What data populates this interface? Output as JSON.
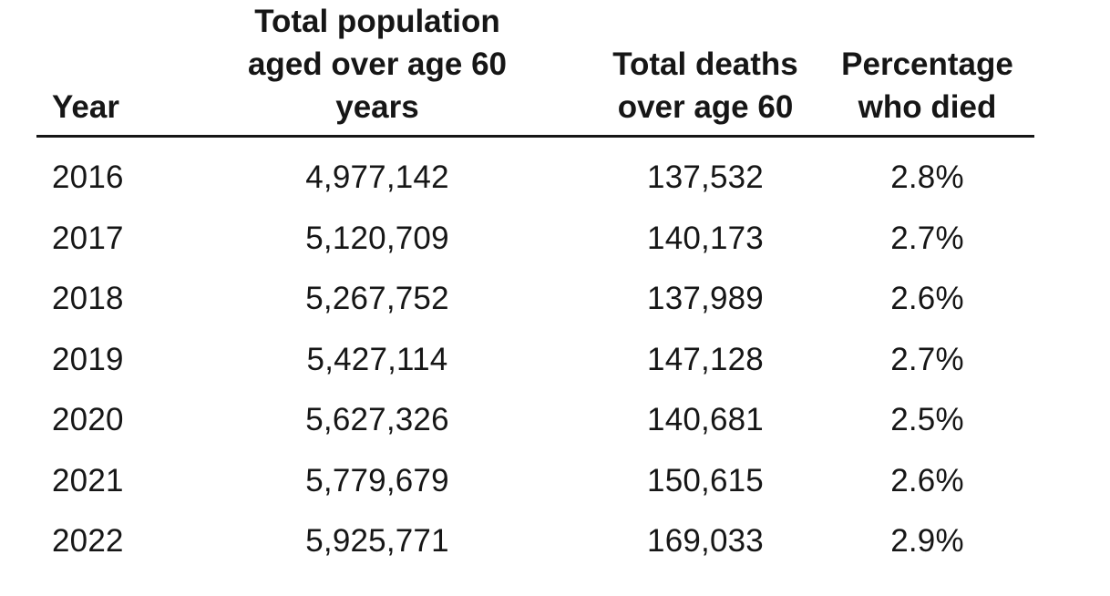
{
  "table": {
    "header_display": {
      "year": "Year",
      "population": "Total population\naged over age 60\nyears",
      "deaths": "Total deaths\nover age 60",
      "percentage": "Percentage\nwho died"
    }
  },
  "chart_data": {
    "type": "table",
    "title": "",
    "columns": [
      "Year",
      "Total population aged over age 60 years",
      "Total deaths over age 60",
      "Percentage who died"
    ],
    "rows": [
      [
        "2016",
        "4,977,142",
        "137,532",
        "2.8%"
      ],
      [
        "2017",
        "5,120,709",
        "140,173",
        "2.7%"
      ],
      [
        "2018",
        "5,267,752",
        "137,989",
        "2.6%"
      ],
      [
        "2019",
        "5,427,114",
        "147,128",
        "2.7%"
      ],
      [
        "2020",
        "5,627,326",
        "140,681",
        "2.5%"
      ],
      [
        "2021",
        "5,779,679",
        "150,615",
        "2.6%"
      ],
      [
        "2022",
        "5,925,771",
        "169,033",
        "2.9%"
      ]
    ]
  }
}
